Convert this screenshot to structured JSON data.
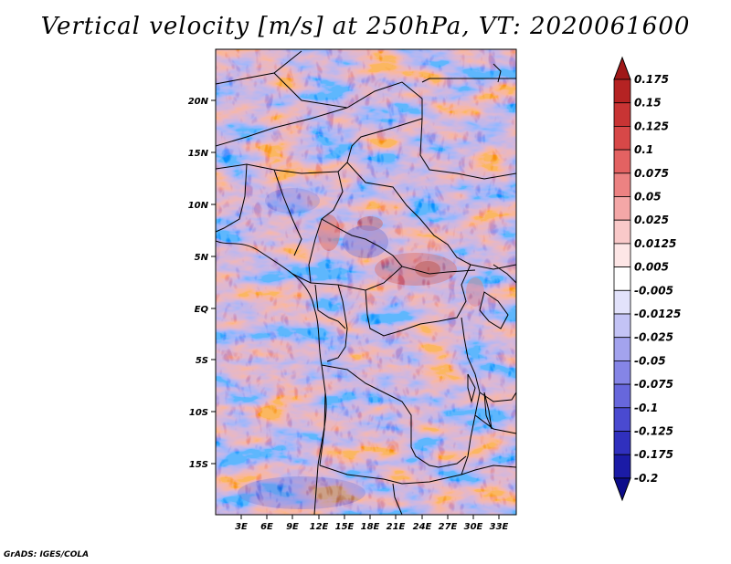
{
  "title": "Vertical velocity [m/s] at 250hPa, VT: 2020061600",
  "credit": "GrADS: IGES/COLA",
  "map": {
    "lat_labels": [
      "20N",
      "15N",
      "10N",
      "5N",
      "EQ",
      "5S",
      "10S",
      "15S"
    ],
    "lon_labels": [
      "3E",
      "6E",
      "9E",
      "12E",
      "15E",
      "18E",
      "21E",
      "24E",
      "27E",
      "30E",
      "33E"
    ],
    "region": "Central Africa"
  },
  "colorbar": {
    "labels": [
      "0.175",
      "0.15",
      "0.125",
      "0.1",
      "0.075",
      "0.05",
      "0.025",
      "0.0125",
      "0.005",
      "-0.005",
      "-0.0125",
      "-0.025",
      "-0.05",
      "-0.075",
      "-0.1",
      "-0.125",
      "-0.175",
      "-0.2"
    ],
    "colors": [
      "#a01818",
      "#b52323",
      "#c83434",
      "#d74848",
      "#e36262",
      "#ec8282",
      "#f4a7a7",
      "#f9c9c9",
      "#fde6e6",
      "#ffffff",
      "#e2e2fb",
      "#c3c3f5",
      "#a3a3ee",
      "#8585e6",
      "#6767dc",
      "#4a4ad0",
      "#3030be",
      "#1b1ba6",
      "#0c0c8a"
    ]
  }
}
